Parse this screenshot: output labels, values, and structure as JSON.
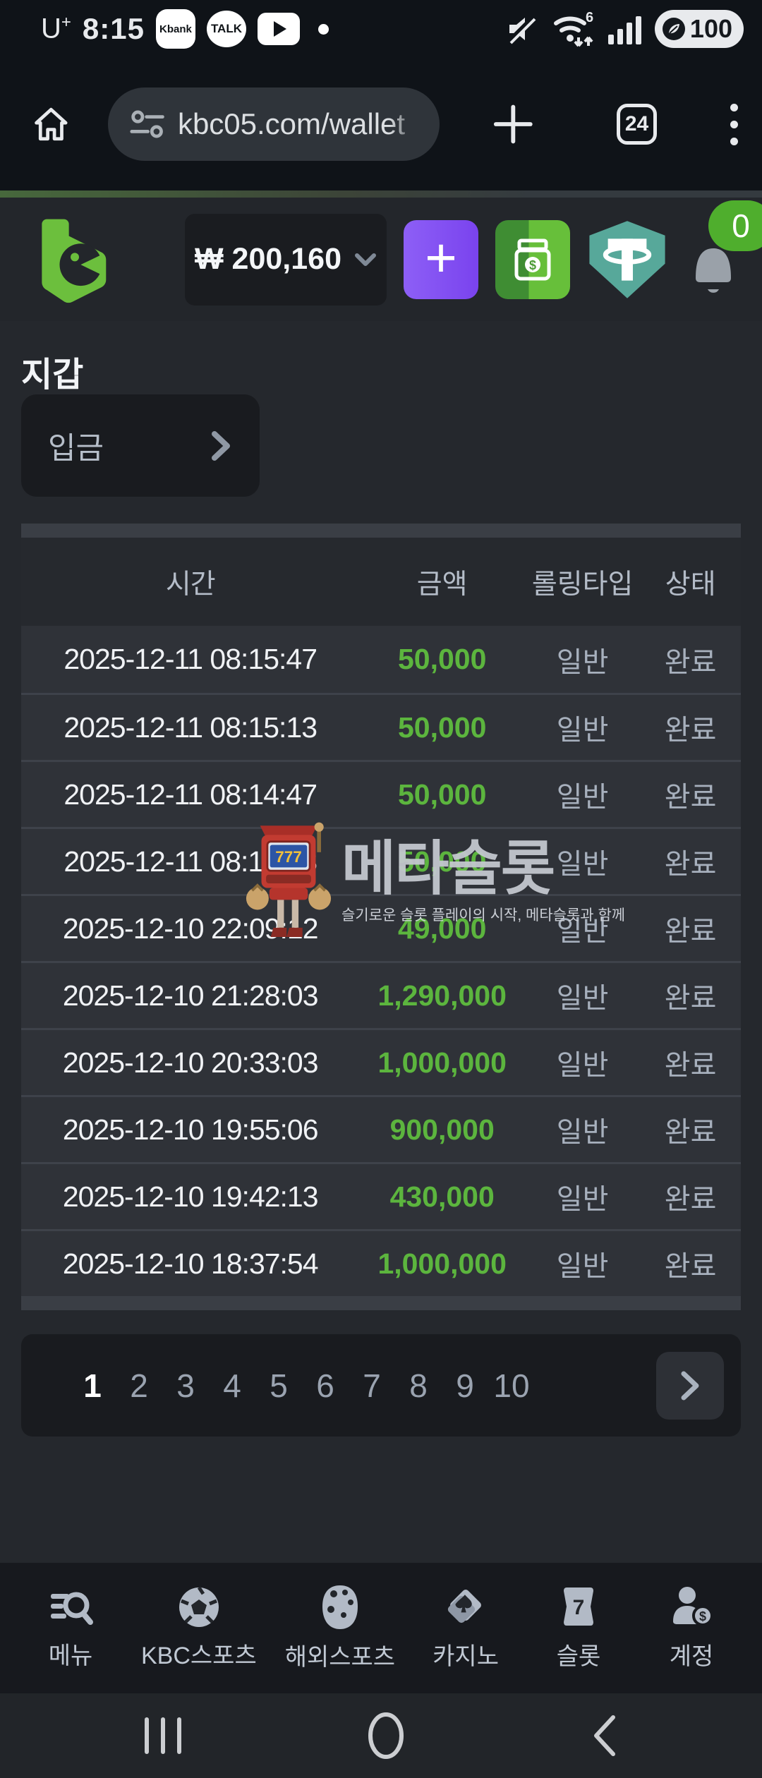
{
  "status_bar": {
    "carrier": "U",
    "carrier_sup": "+",
    "time": "8:15",
    "kbank_label": "Kbank",
    "talk_label": "TALK",
    "battery": "100"
  },
  "browser": {
    "url": "kbc05.com/wallet",
    "tab_count": "24"
  },
  "site_header": {
    "balance": "₩ 200,160",
    "notification_count": "0"
  },
  "page": {
    "title": "지갑",
    "deposit_button": "입금"
  },
  "table": {
    "headers": [
      "시간",
      "금액",
      "롤링타입",
      "상태"
    ],
    "rows": [
      {
        "time": "2025-12-11 08:15:47",
        "amount": "50,000",
        "rolling": "일반",
        "status": "완료"
      },
      {
        "time": "2025-12-11 08:15:13",
        "amount": "50,000",
        "rolling": "일반",
        "status": "완료"
      },
      {
        "time": "2025-12-11 08:14:47",
        "amount": "50,000",
        "rolling": "일반",
        "status": "완료"
      },
      {
        "time": "2025-12-11 08:14:28",
        "amount": "50,000",
        "rolling": "일반",
        "status": "완료"
      },
      {
        "time": "2025-12-10 22:09:12",
        "amount": "49,000",
        "rolling": "일반",
        "status": "완료"
      },
      {
        "time": "2025-12-10 21:28:03",
        "amount": "1,290,000",
        "rolling": "일반",
        "status": "완료"
      },
      {
        "time": "2025-12-10 20:33:03",
        "amount": "1,000,000",
        "rolling": "일반",
        "status": "완료"
      },
      {
        "time": "2025-12-10 19:55:06",
        "amount": "900,000",
        "rolling": "일반",
        "status": "완료"
      },
      {
        "time": "2025-12-10 19:42:13",
        "amount": "430,000",
        "rolling": "일반",
        "status": "완료"
      },
      {
        "time": "2025-12-10 18:37:54",
        "amount": "1,000,000",
        "rolling": "일반",
        "status": "완료"
      }
    ]
  },
  "watermark": {
    "title": "메타슬롯",
    "subtitle": "슬기로운 슬롯 플레이의 시작, 메타슬롯과 함께",
    "slot_text": "777"
  },
  "pagination": {
    "pages": [
      "1",
      "2",
      "3",
      "4",
      "5",
      "6",
      "7",
      "8",
      "9",
      "10"
    ],
    "current": "1"
  },
  "bottom_nav": {
    "items": [
      {
        "label": "메뉴",
        "icon": "menu-search-icon"
      },
      {
        "label": "KBC스포츠",
        "icon": "soccer-ball-icon"
      },
      {
        "label": "해외스포츠",
        "icon": "overseas-ball-icon"
      },
      {
        "label": "카지노",
        "icon": "casino-spade-icon"
      },
      {
        "label": "슬롯",
        "icon": "slot-seven-icon"
      },
      {
        "label": "계정",
        "icon": "account-coin-icon"
      }
    ]
  },
  "colors": {
    "amount_green": "#5cb53e",
    "badge_green": "#4fae2d",
    "purple": "#7a43ee",
    "tether_teal": "#57a89a",
    "logo_green": "#6cbf3d"
  }
}
